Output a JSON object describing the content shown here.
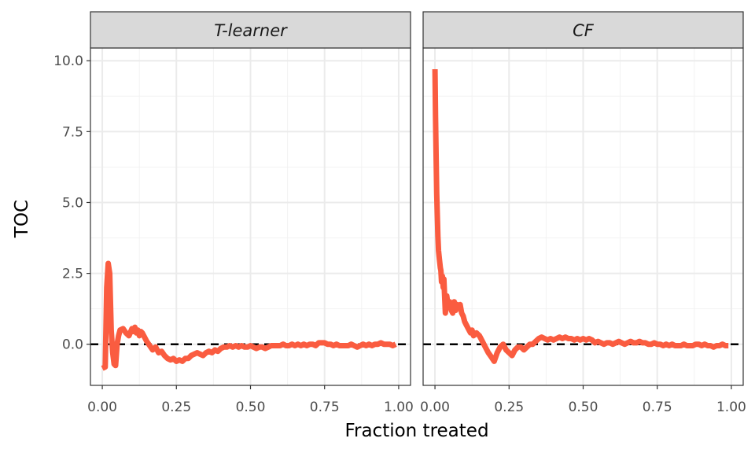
{
  "chart_data": {
    "type": "line",
    "xlabel": "Fraction treated",
    "ylabel": "TOC",
    "xlim": [
      -0.04,
      1.04
    ],
    "ylim": [
      -1.45,
      10.45
    ],
    "x_ticks": [
      0.0,
      0.25,
      0.5,
      0.75,
      1.0
    ],
    "x_tick_labels": [
      "0.00",
      "0.25",
      "0.50",
      "0.75",
      "1.00"
    ],
    "y_ticks": [
      0.0,
      2.5,
      5.0,
      7.5,
      10.0
    ],
    "y_tick_labels": [
      "0.0",
      "2.5",
      "5.0",
      "7.5",
      "10.0"
    ],
    "grid": true,
    "reference_line": {
      "y": 0,
      "style": "dashed",
      "color": "#000000"
    },
    "line_color": "#fa5c40",
    "panels": [
      {
        "title": "T-learner",
        "x": [
          0.0,
          0.01,
          0.015,
          0.02,
          0.025,
          0.03,
          0.035,
          0.04,
          0.045,
          0.05,
          0.055,
          0.06,
          0.07,
          0.08,
          0.09,
          0.1,
          0.105,
          0.11,
          0.115,
          0.12,
          0.125,
          0.13,
          0.135,
          0.14,
          0.15,
          0.16,
          0.17,
          0.18,
          0.19,
          0.2,
          0.21,
          0.22,
          0.23,
          0.24,
          0.25,
          0.26,
          0.27,
          0.28,
          0.29,
          0.3,
          0.31,
          0.32,
          0.33,
          0.34,
          0.35,
          0.36,
          0.37,
          0.38,
          0.39,
          0.4,
          0.41,
          0.42,
          0.43,
          0.44,
          0.45,
          0.46,
          0.47,
          0.48,
          0.49,
          0.5,
          0.51,
          0.52,
          0.53,
          0.54,
          0.55,
          0.56,
          0.57,
          0.58,
          0.59,
          0.6,
          0.61,
          0.62,
          0.63,
          0.64,
          0.65,
          0.66,
          0.67,
          0.68,
          0.69,
          0.7,
          0.71,
          0.72,
          0.73,
          0.74,
          0.75,
          0.76,
          0.77,
          0.78,
          0.79,
          0.8,
          0.81,
          0.82,
          0.83,
          0.84,
          0.85,
          0.86,
          0.87,
          0.88,
          0.89,
          0.9,
          0.91,
          0.92,
          0.93,
          0.94,
          0.95,
          0.96,
          0.97,
          0.98,
          0.99
        ],
        "y": [
          -0.85,
          -0.8,
          2.0,
          2.85,
          2.5,
          0.5,
          -0.3,
          -0.7,
          -0.75,
          0.0,
          0.3,
          0.5,
          0.55,
          0.4,
          0.3,
          0.55,
          0.45,
          0.6,
          0.4,
          0.5,
          0.3,
          0.45,
          0.4,
          0.3,
          0.1,
          -0.05,
          -0.2,
          -0.1,
          -0.3,
          -0.25,
          -0.4,
          -0.5,
          -0.55,
          -0.5,
          -0.6,
          -0.55,
          -0.6,
          -0.5,
          -0.5,
          -0.4,
          -0.35,
          -0.3,
          -0.35,
          -0.4,
          -0.3,
          -0.25,
          -0.3,
          -0.2,
          -0.25,
          -0.15,
          -0.1,
          -0.1,
          -0.05,
          -0.1,
          -0.05,
          -0.1,
          -0.05,
          -0.1,
          -0.1,
          -0.05,
          -0.1,
          -0.15,
          -0.1,
          -0.1,
          -0.15,
          -0.1,
          -0.05,
          -0.05,
          -0.05,
          -0.05,
          0.0,
          -0.05,
          -0.05,
          0.0,
          -0.05,
          0.0,
          -0.05,
          0.0,
          -0.05,
          0.0,
          0.0,
          -0.05,
          0.05,
          0.05,
          0.05,
          0.0,
          0.0,
          -0.05,
          0.0,
          -0.05,
          -0.05,
          -0.05,
          -0.05,
          0.0,
          -0.05,
          -0.1,
          -0.05,
          0.0,
          -0.05,
          0.0,
          -0.05,
          0.0,
          0.0,
          0.05,
          0.0,
          0.0,
          0.0,
          -0.05,
          0.0
        ]
      },
      {
        "title": "CF",
        "x": [
          0.0,
          0.002,
          0.004,
          0.006,
          0.008,
          0.01,
          0.012,
          0.015,
          0.018,
          0.02,
          0.022,
          0.025,
          0.028,
          0.03,
          0.035,
          0.04,
          0.045,
          0.05,
          0.055,
          0.06,
          0.065,
          0.07,
          0.075,
          0.08,
          0.085,
          0.09,
          0.095,
          0.1,
          0.105,
          0.11,
          0.115,
          0.12,
          0.125,
          0.13,
          0.14,
          0.15,
          0.16,
          0.17,
          0.18,
          0.19,
          0.2,
          0.21,
          0.22,
          0.23,
          0.24,
          0.25,
          0.26,
          0.27,
          0.28,
          0.29,
          0.3,
          0.31,
          0.32,
          0.33,
          0.34,
          0.35,
          0.36,
          0.37,
          0.38,
          0.39,
          0.4,
          0.41,
          0.42,
          0.43,
          0.44,
          0.45,
          0.46,
          0.47,
          0.48,
          0.49,
          0.5,
          0.51,
          0.52,
          0.53,
          0.54,
          0.55,
          0.56,
          0.57,
          0.58,
          0.59,
          0.6,
          0.61,
          0.62,
          0.63,
          0.64,
          0.65,
          0.66,
          0.67,
          0.68,
          0.69,
          0.7,
          0.71,
          0.72,
          0.73,
          0.74,
          0.75,
          0.76,
          0.77,
          0.78,
          0.79,
          0.8,
          0.81,
          0.82,
          0.83,
          0.84,
          0.85,
          0.86,
          0.87,
          0.88,
          0.89,
          0.9,
          0.91,
          0.92,
          0.93,
          0.94,
          0.95,
          0.96,
          0.97,
          0.98,
          0.99
        ],
        "y": [
          9.7,
          8.0,
          6.5,
          5.3,
          4.5,
          3.8,
          3.3,
          3.0,
          2.7,
          2.6,
          2.2,
          2.4,
          2.0,
          2.3,
          1.1,
          1.7,
          1.3,
          1.5,
          1.2,
          1.1,
          1.5,
          1.2,
          1.4,
          1.3,
          1.4,
          1.1,
          1.0,
          0.8,
          0.7,
          0.6,
          0.5,
          0.4,
          0.5,
          0.3,
          0.4,
          0.3,
          0.1,
          -0.1,
          -0.3,
          -0.45,
          -0.6,
          -0.3,
          -0.1,
          0.0,
          -0.2,
          -0.3,
          -0.4,
          -0.2,
          -0.1,
          -0.1,
          -0.2,
          -0.1,
          0.0,
          0.0,
          0.1,
          0.2,
          0.25,
          0.2,
          0.15,
          0.2,
          0.15,
          0.2,
          0.25,
          0.2,
          0.25,
          0.2,
          0.2,
          0.15,
          0.2,
          0.15,
          0.2,
          0.15,
          0.2,
          0.15,
          0.05,
          0.1,
          0.05,
          0.0,
          0.05,
          0.05,
          0.0,
          0.05,
          0.1,
          0.05,
          0.0,
          0.05,
          0.1,
          0.05,
          0.05,
          0.1,
          0.05,
          0.05,
          0.0,
          0.0,
          0.05,
          0.0,
          0.0,
          -0.05,
          0.0,
          -0.05,
          0.0,
          -0.05,
          -0.05,
          -0.05,
          0.0,
          -0.05,
          -0.05,
          -0.05,
          0.0,
          0.0,
          -0.05,
          0.0,
          -0.05,
          -0.05,
          -0.1,
          -0.05,
          -0.05,
          0.0,
          -0.05,
          -0.05
        ]
      }
    ]
  }
}
